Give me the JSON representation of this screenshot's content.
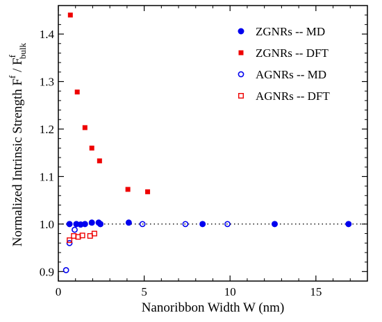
{
  "chart_data": {
    "type": "scatter",
    "xlabel": "Nanoribbon Width  W (nm)",
    "ylabel": {
      "main": "Normalized Intrinsic Strength  F",
      "sup1": "f",
      "slash": " / F",
      "sup2": "f",
      "sub2": "bulk"
    },
    "xlim": [
      0,
      18
    ],
    "ylim": [
      0.88,
      1.46
    ],
    "xticks": [
      {
        "value": 0,
        "label": "0"
      },
      {
        "value": 5,
        "label": "5"
      },
      {
        "value": 10,
        "label": "10"
      },
      {
        "value": 15,
        "label": "15"
      }
    ],
    "yticks": [
      {
        "value": 0.9,
        "label": "0.9"
      },
      {
        "value": 1.0,
        "label": "1.0"
      },
      {
        "value": 1.1,
        "label": "1.1"
      },
      {
        "value": 1.2,
        "label": "1.2"
      },
      {
        "value": 1.3,
        "label": "1.3"
      },
      {
        "value": 1.4,
        "label": "1.4"
      }
    ],
    "reference_line": {
      "y": 1.0,
      "style": "dotted"
    },
    "legend_position": "top-right",
    "series": [
      {
        "name": "ZGNRs -- MD",
        "marker": "filled-circle",
        "color": "#0000ee",
        "points": [
          {
            "x": 0.65,
            "y": 1.0
          },
          {
            "x": 1.05,
            "y": 1.0
          },
          {
            "x": 1.3,
            "y": 0.999
          },
          {
            "x": 1.55,
            "y": 1.0
          },
          {
            "x": 1.95,
            "y": 1.003
          },
          {
            "x": 2.35,
            "y": 1.003
          },
          {
            "x": 2.45,
            "y": 1.0
          },
          {
            "x": 4.1,
            "y": 1.003
          },
          {
            "x": 8.4,
            "y": 1.0
          },
          {
            "x": 12.6,
            "y": 1.0
          },
          {
            "x": 16.9,
            "y": 1.0
          }
        ]
      },
      {
        "name": "ZGNRs -- DFT",
        "marker": "filled-square",
        "color": "#ee0000",
        "points": [
          {
            "x": 0.7,
            "y": 1.44
          },
          {
            "x": 1.1,
            "y": 1.278
          },
          {
            "x": 1.55,
            "y": 1.203
          },
          {
            "x": 1.95,
            "y": 1.16
          },
          {
            "x": 2.4,
            "y": 1.133
          },
          {
            "x": 4.05,
            "y": 1.073
          },
          {
            "x": 5.2,
            "y": 1.068
          }
        ]
      },
      {
        "name": "AGNRs -- MD",
        "marker": "open-circle",
        "color": "#0000ee",
        "points": [
          {
            "x": 0.45,
            "y": 0.903
          },
          {
            "x": 0.65,
            "y": 0.96
          },
          {
            "x": 0.95,
            "y": 0.988
          },
          {
            "x": 2.45,
            "y": 1.0
          },
          {
            "x": 4.9,
            "y": 1.0
          },
          {
            "x": 7.4,
            "y": 1.0
          },
          {
            "x": 9.85,
            "y": 1.0
          }
        ]
      },
      {
        "name": "AGNRs -- DFT",
        "marker": "open-square",
        "color": "#ee0000",
        "points": [
          {
            "x": 0.65,
            "y": 0.966
          },
          {
            "x": 0.9,
            "y": 0.975
          },
          {
            "x": 1.15,
            "y": 0.973
          },
          {
            "x": 1.4,
            "y": 0.976
          },
          {
            "x": 1.85,
            "y": 0.975
          },
          {
            "x": 2.1,
            "y": 0.98
          }
        ]
      }
    ]
  }
}
